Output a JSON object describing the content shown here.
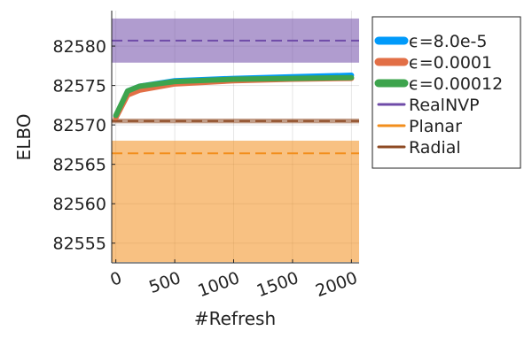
{
  "chart_data": {
    "type": "line",
    "xlabel": "#Refresh",
    "ylabel": "ELBO",
    "xlim": [
      -35,
      2065
    ],
    "ylim": [
      82552.5,
      82584.5
    ],
    "xticks": [
      0,
      500,
      1000,
      1500,
      2000
    ],
    "xtick_labels": [
      "0",
      "500",
      "1000",
      "1500",
      "2000"
    ],
    "yticks": [
      82555,
      82560,
      82565,
      82570,
      82575,
      82580
    ],
    "ytick_labels": [
      "82555",
      "82560",
      "82565",
      "82570",
      "82575",
      "82580"
    ],
    "grid": true,
    "legend_position": "outer-right",
    "series": [
      {
        "name": "ϵ=8.0e-5",
        "color": "#009AFA",
        "width": 6,
        "x": [
          0,
          100,
          200,
          500,
          1000,
          1500,
          2000
        ],
        "y": [
          82571.1,
          82574.3,
          82574.9,
          82575.6,
          82575.9,
          82576.1,
          82576.3
        ]
      },
      {
        "name": "ϵ=0.0001",
        "color": "#E26F46",
        "width": 6,
        "x": [
          0,
          100,
          200,
          500,
          1000,
          1500,
          2000
        ],
        "y": [
          82570.9,
          82573.8,
          82574.4,
          82575.2,
          82575.6,
          82575.8,
          82575.9
        ]
      },
      {
        "name": "ϵ=0.00012",
        "color": "#3DA44D",
        "width": 6,
        "x": [
          0,
          100,
          200,
          500,
          1000,
          1500,
          2000
        ],
        "y": [
          82571.2,
          82574.3,
          82574.9,
          82575.5,
          82575.8,
          82575.9,
          82576.0
        ]
      }
    ],
    "bands": [
      {
        "name": "RealNVP",
        "color": "#6F4BA8",
        "mean": 82580.7,
        "lower": 82577.9,
        "upper": 82583.5
      },
      {
        "name": "Planar",
        "color": "#F28E1C",
        "mean": 82566.4,
        "lower": 82552.6,
        "upper": 82568.0
      },
      {
        "name": "Radial",
        "color": "#8E4A23",
        "mean": 82570.5,
        "lower": 82570.2,
        "upper": 82570.8
      }
    ]
  }
}
